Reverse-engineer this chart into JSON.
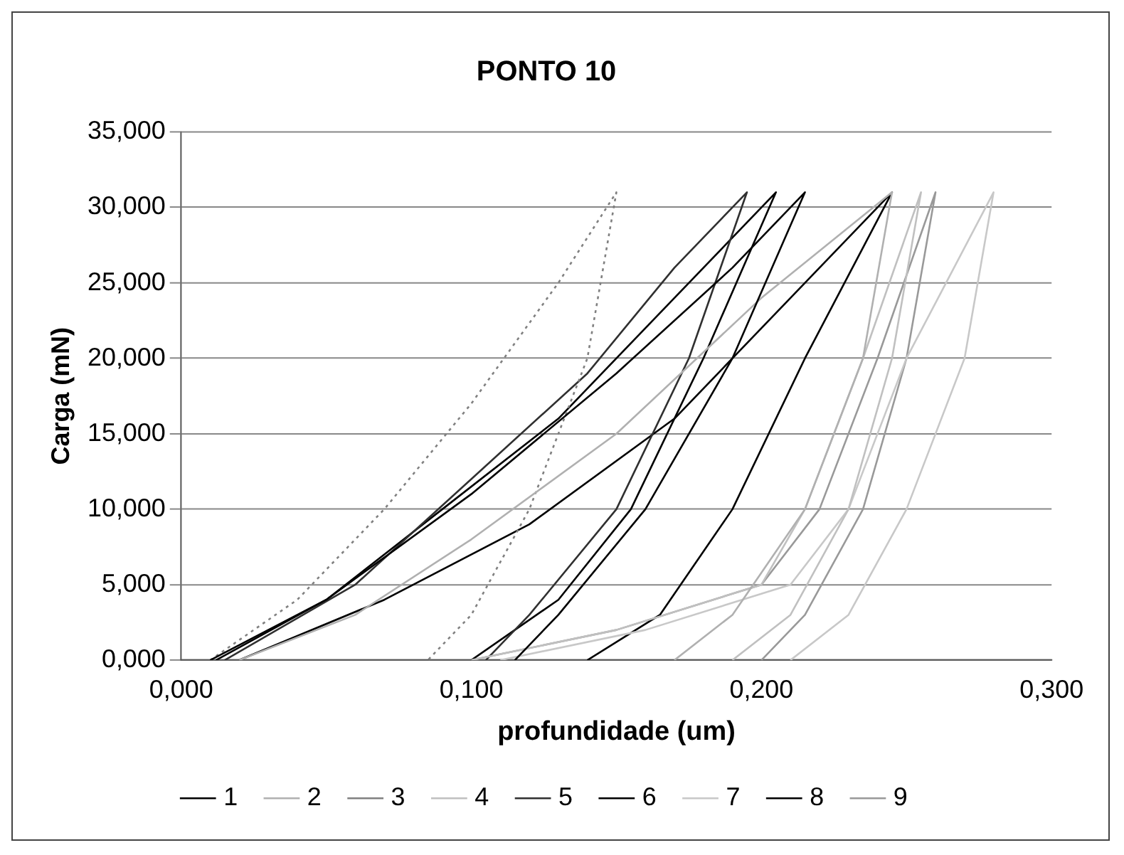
{
  "chart_data": {
    "type": "line",
    "title": "PONTO 10",
    "xlabel": "profundidade (um)",
    "ylabel": "Carga (mN)",
    "xlim": [
      0,
      0.3
    ],
    "xticks": [
      {
        "value": 0,
        "label": "0,000"
      },
      {
        "value": 0.1,
        "label": "0,100"
      },
      {
        "value": 0.2,
        "label": "0,200"
      },
      {
        "value": 0.3,
        "label": "0,300"
      }
    ],
    "ylim": [
      0,
      35
    ],
    "yticks": [
      {
        "value": 0,
        "label": "0,000"
      },
      {
        "value": 5,
        "label": "5,000"
      },
      {
        "value": 10,
        "label": "10,000"
      },
      {
        "value": 15,
        "label": "15,000"
      },
      {
        "value": 20,
        "label": "20,000"
      },
      {
        "value": 25,
        "label": "25,000"
      },
      {
        "value": 30,
        "label": "30,000"
      },
      {
        "value": 35,
        "label": "35,000"
      }
    ],
    "grid": "y",
    "legend": "bottom",
    "marker": "none",
    "series": [
      {
        "name": "1",
        "color": "#000000",
        "x": [
          0.01,
          0.05,
          0.1,
          0.15,
          0.19,
          0.215,
          0.19,
          0.16,
          0.13,
          0.115
        ],
        "values": [
          0,
          4,
          11,
          19,
          26,
          31,
          20,
          10,
          3,
          0
        ]
      },
      {
        "name": "2",
        "color": "#b0b0b0",
        "x": [
          0.02,
          0.06,
          0.1,
          0.15,
          0.2,
          0.245,
          0.235,
          0.215,
          0.19,
          0.17
        ],
        "values": [
          0,
          3,
          8,
          15,
          24,
          31,
          20,
          10,
          3,
          0
        ]
      },
      {
        "name": "3",
        "color": "#808080",
        "line_style": "dotted",
        "x": [
          0.01,
          0.04,
          0.07,
          0.1,
          0.13,
          0.15,
          0.14,
          0.12,
          0.1,
          0.085
        ],
        "values": [
          0,
          4,
          10,
          17,
          25,
          31,
          20,
          10,
          3,
          0
        ]
      },
      {
        "name": "4",
        "color": "#c0c0c0",
        "x": [
          0.1,
          0.15,
          0.2,
          0.215,
          0.235,
          0.255,
          0.245,
          0.23,
          0.21,
          0.19
        ],
        "values": [
          0,
          2,
          5,
          10,
          20,
          31,
          20,
          10,
          3,
          0
        ]
      },
      {
        "name": "5",
        "color": "#303030",
        "x": [
          0.015,
          0.06,
          0.1,
          0.14,
          0.17,
          0.195,
          0.175,
          0.15,
          0.12,
          0.105
        ],
        "values": [
          0,
          5,
          12,
          19,
          26,
          31,
          20,
          10,
          3,
          0
        ]
      },
      {
        "name": "6",
        "color": "#000000",
        "x": [
          0.012,
          0.05,
          0.09,
          0.13,
          0.17,
          0.205,
          0.18,
          0.155,
          0.13,
          0.1
        ],
        "values": [
          0,
          4,
          10,
          16,
          24,
          31,
          20,
          10,
          4,
          0
        ]
      },
      {
        "name": "7",
        "color": "#c8c8c8",
        "x": [
          0.11,
          0.16,
          0.21,
          0.23,
          0.25,
          0.28,
          0.27,
          0.25,
          0.23,
          0.21
        ],
        "values": [
          0,
          2,
          5,
          10,
          20,
          31,
          20,
          10,
          3,
          0
        ]
      },
      {
        "name": "8",
        "color": "#000000",
        "x": [
          0.02,
          0.07,
          0.12,
          0.17,
          0.21,
          0.245,
          0.215,
          0.19,
          0.165,
          0.14
        ],
        "values": [
          0,
          4,
          9,
          16,
          24,
          31,
          20,
          10,
          3,
          0
        ]
      },
      {
        "name": "9",
        "color": "#999999",
        "x": [
          0.1,
          0.15,
          0.2,
          0.22,
          0.24,
          0.26,
          0.25,
          0.235,
          0.215,
          0.2
        ],
        "values": [
          0,
          2,
          5,
          10,
          20,
          31,
          20,
          10,
          3,
          0
        ]
      }
    ]
  }
}
